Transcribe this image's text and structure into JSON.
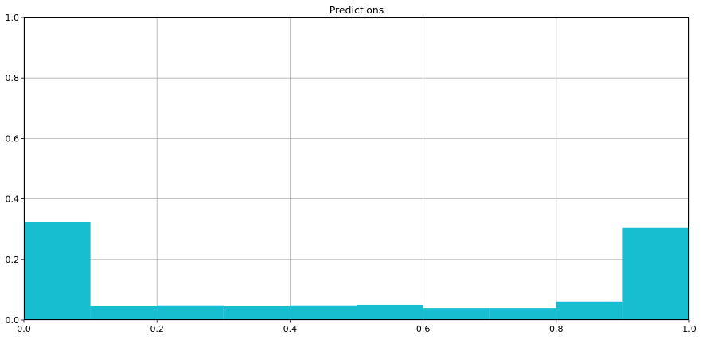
{
  "chart_data": {
    "type": "bar",
    "title": "Predictions",
    "xlabel": "",
    "ylabel": "",
    "xlim": [
      0,
      1
    ],
    "ylim": [
      0,
      1
    ],
    "grid": true,
    "bar_color": "#17becf",
    "bins": [
      {
        "x0": 0.0,
        "x1": 0.1,
        "value": 0.323
      },
      {
        "x0": 0.1,
        "x1": 0.2,
        "value": 0.045
      },
      {
        "x0": 0.2,
        "x1": 0.3,
        "value": 0.048
      },
      {
        "x0": 0.3,
        "x1": 0.4,
        "value": 0.045
      },
      {
        "x0": 0.4,
        "x1": 0.5,
        "value": 0.048
      },
      {
        "x0": 0.5,
        "x1": 0.6,
        "value": 0.05
      },
      {
        "x0": 0.6,
        "x1": 0.7,
        "value": 0.039
      },
      {
        "x0": 0.7,
        "x1": 0.8,
        "value": 0.039
      },
      {
        "x0": 0.8,
        "x1": 0.9,
        "value": 0.061
      },
      {
        "x0": 0.9,
        "x1": 1.0,
        "value": 0.305
      }
    ],
    "xticks": [
      {
        "value": 0.0,
        "label": "0.0"
      },
      {
        "value": 0.2,
        "label": "0.2"
      },
      {
        "value": 0.4,
        "label": "0.4"
      },
      {
        "value": 0.6,
        "label": "0.6"
      },
      {
        "value": 0.8,
        "label": "0.8"
      },
      {
        "value": 1.0,
        "label": "1.0"
      }
    ],
    "yticks": [
      {
        "value": 0.0,
        "label": "0.0"
      },
      {
        "value": 0.2,
        "label": "0.2"
      },
      {
        "value": 0.4,
        "label": "0.4"
      },
      {
        "value": 0.6,
        "label": "0.6"
      },
      {
        "value": 0.8,
        "label": "0.8"
      },
      {
        "value": 1.0,
        "label": "1.0"
      }
    ]
  }
}
